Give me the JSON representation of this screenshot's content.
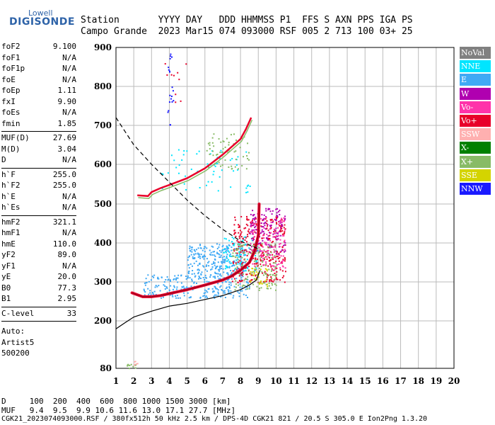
{
  "logo": {
    "top": "Lowell",
    "main": "DIGISONDE"
  },
  "header": {
    "row1": "Station       YYYY DAY   DDD HHMMSS P1  FFS S AXN PPS IGA PS",
    "row2": "Campo Grande  2023 Mar15 074 093000 RSF 005 2 713 100 03+ 25"
  },
  "params": {
    "group1": [
      {
        "name": "foF2",
        "value": "9.100"
      },
      {
        "name": "foF1",
        "value": "N/A"
      },
      {
        "name": "foF1p",
        "value": "N/A"
      },
      {
        "name": "foE",
        "value": "N/A"
      },
      {
        "name": "foEp",
        "value": "1.11"
      },
      {
        "name": "fxI",
        "value": "9.90"
      },
      {
        "name": "foEs",
        "value": "N/A"
      },
      {
        "name": "fmin",
        "value": "1.85"
      }
    ],
    "group2": [
      {
        "name": "MUF(D)",
        "value": "27.69"
      },
      {
        "name": "M(D)",
        "value": "3.04"
      },
      {
        "name": "D",
        "value": "N/A"
      }
    ],
    "group3": [
      {
        "name": "h`F",
        "value": "255.0"
      },
      {
        "name": "h`F2",
        "value": "255.0"
      },
      {
        "name": "h`E",
        "value": "N/A"
      },
      {
        "name": "h`Es",
        "value": "N/A"
      }
    ],
    "group4": [
      {
        "name": "hmF2",
        "value": "321.1"
      },
      {
        "name": "hmF1",
        "value": "N/A"
      },
      {
        "name": "hmE",
        "value": "110.0"
      },
      {
        "name": "yF2",
        "value": "89.0"
      },
      {
        "name": "yF1",
        "value": "N/A"
      },
      {
        "name": "yE",
        "value": "20.0"
      },
      {
        "name": "B0",
        "value": "77.3"
      },
      {
        "name": "B1",
        "value": "2.95"
      }
    ],
    "group5": [
      {
        "name": "C-level",
        "value": "33"
      }
    ],
    "auto": [
      "Auto:",
      "Artist5",
      "500200"
    ]
  },
  "legend": [
    {
      "label": "NoVal",
      "color": "#808080"
    },
    {
      "label": "NNE",
      "color": "#00e5ff"
    },
    {
      "label": "E",
      "color": "#3fa9f5"
    },
    {
      "label": "W",
      "color": "#b000b0"
    },
    {
      "label": "Vo-",
      "color": "#ff33aa"
    },
    {
      "label": "Vo+",
      "color": "#e8002a"
    },
    {
      "label": "SSW",
      "color": "#ffb0b0"
    },
    {
      "label": "X-",
      "color": "#008000"
    },
    {
      "label": "X+",
      "color": "#88bb66"
    },
    {
      "label": "SSE",
      "color": "#d4d400"
    },
    {
      "label": "NNW",
      "color": "#1a1aff"
    }
  ],
  "footer": {
    "line1": "D     100  200  400  600  800 1000 1500 3000 [km]",
    "line2": "MUF   9.4  9.5  9.9 10.6 11.6 13.0 17.1 27.7 [MHz]",
    "line3": "CGK21_2023074093000.RSF / 380fx512h 50 kHz 2.5 km / DPS-4D CGK21 821 / 20.5 S 305.0 E Ion2Png 1.3.20"
  },
  "chart_data": {
    "type": "scatter",
    "xlim": [
      1,
      20
    ],
    "ylim": [
      80,
      900
    ],
    "x_ticks": [
      1,
      2,
      3,
      4,
      5,
      6,
      7,
      8,
      9,
      10,
      11,
      12,
      13,
      14,
      15,
      16,
      17,
      18,
      19,
      20
    ],
    "y_ticks": [
      80,
      200,
      300,
      400,
      500,
      600,
      700,
      800,
      900
    ],
    "grid": true,
    "profile_curve": [
      [
        1,
        180
      ],
      [
        1.5,
        195
      ],
      [
        2,
        210
      ],
      [
        3,
        225
      ],
      [
        4,
        238
      ],
      [
        5,
        245
      ],
      [
        6,
        255
      ],
      [
        7,
        265
      ],
      [
        8,
        280
      ],
      [
        8.5,
        292
      ],
      [
        8.9,
        305
      ],
      [
        9.1,
        330
      ]
    ],
    "muf_curve": [
      [
        1,
        720
      ],
      [
        1.5,
        685
      ],
      [
        2,
        650
      ],
      [
        3,
        600
      ],
      [
        4,
        555
      ],
      [
        5,
        510
      ],
      [
        6,
        470
      ],
      [
        7,
        435
      ],
      [
        8,
        405
      ],
      [
        9,
        385
      ]
    ],
    "trace_o_main": [
      [
        1.9,
        272
      ],
      [
        2.5,
        262
      ],
      [
        3,
        262
      ],
      [
        3.5,
        265
      ],
      [
        4,
        270
      ],
      [
        5,
        280
      ],
      [
        6,
        292
      ],
      [
        7,
        305
      ],
      [
        7.5,
        315
      ],
      [
        8,
        330
      ],
      [
        8.5,
        350
      ],
      [
        8.8,
        380
      ],
      [
        9,
        420
      ],
      [
        9.05,
        500
      ]
    ],
    "trace_second_hop": [
      [
        2.2,
        522
      ],
      [
        2.8,
        520
      ],
      [
        3,
        530
      ],
      [
        3.5,
        540
      ],
      [
        4,
        548
      ],
      [
        5,
        565
      ],
      [
        6,
        590
      ],
      [
        7,
        625
      ],
      [
        7.5,
        645
      ],
      [
        8,
        665
      ],
      [
        8.3,
        690
      ],
      [
        8.6,
        720
      ]
    ],
    "scatter_regions": [
      {
        "color": "#3fa9f5",
        "x": [
          2.5,
          8.5
        ],
        "y": [
          260,
          320
        ],
        "n": 260
      },
      {
        "color": "#3fa9f5",
        "x": [
          5,
          8.3
        ],
        "y": [
          320,
          400
        ],
        "n": 260
      },
      {
        "color": "#00e5ff",
        "x": [
          7,
          9
        ],
        "y": [
          330,
          420
        ],
        "n": 90
      },
      {
        "color": "#e8002a",
        "x": [
          7.5,
          10.5
        ],
        "y": [
          300,
          470
        ],
        "n": 320
      },
      {
        "color": "#b000b0",
        "x": [
          8.5,
          10.5
        ],
        "y": [
          370,
          490
        ],
        "n": 150
      },
      {
        "color": "#88bb66",
        "x": [
          7.5,
          10
        ],
        "y": [
          280,
          400
        ],
        "n": 150
      },
      {
        "color": "#ff33aa",
        "x": [
          8.5,
          10.5
        ],
        "y": [
          330,
          470
        ],
        "n": 100
      },
      {
        "color": "#d4d400",
        "x": [
          8.5,
          9.5
        ],
        "y": [
          290,
          340
        ],
        "n": 30
      },
      {
        "color": "#00e5ff",
        "x": [
          3.5,
          8.5
        ],
        "y": [
          530,
          640
        ],
        "n": 60
      },
      {
        "color": "#88bb66",
        "x": [
          6,
          8.5
        ],
        "y": [
          590,
          680
        ],
        "n": 60
      },
      {
        "color": "#1a1aff",
        "x": [
          3.8,
          4.2
        ],
        "y": [
          700,
          890
        ],
        "n": 20
      },
      {
        "color": "#e8002a",
        "x": [
          3.7,
          5
        ],
        "y": [
          750,
          870
        ],
        "n": 10
      },
      {
        "color": "#88bb66",
        "x": [
          1.6,
          2.1
        ],
        "y": [
          80,
          92
        ],
        "n": 12
      },
      {
        "color": "#ffb0b0",
        "x": [
          2,
          2.2
        ],
        "y": [
          88,
          100
        ],
        "n": 6
      }
    ]
  }
}
